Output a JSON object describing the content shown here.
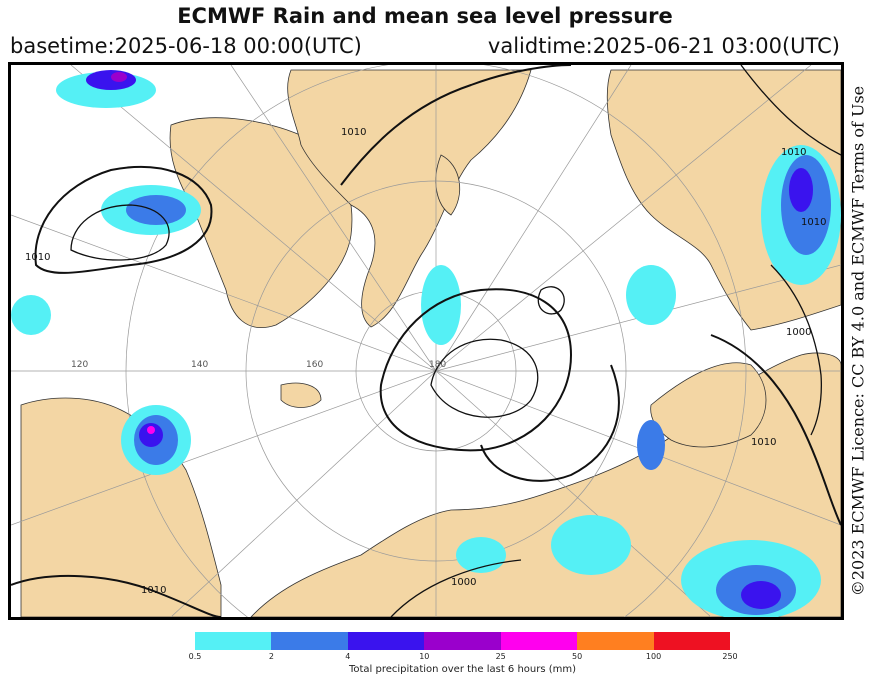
{
  "header": {
    "title": "ECMWF Rain and mean sea level pressure",
    "basetime": "basetime:2025-06-18 00:00(UTC)",
    "validtime": "validtime:2025-06-21 03:00(UTC)"
  },
  "credit": "©2023 ECMWF Licence: CC BY 4.0 and ECMWF Terms of Use",
  "map": {
    "projection": "polar-stereographic-north",
    "isobar_labels": [
      "1010",
      "1010",
      "1010",
      "1000",
      "1010",
      "1010",
      "1000",
      "1010"
    ],
    "longitude_labels": [
      "120",
      "140",
      "160",
      "180"
    ],
    "colors": {
      "land": "#f3d6a4",
      "sea": "#ffffff",
      "isobar": "#111111",
      "graticule": "#999999"
    }
  },
  "legend": {
    "caption": "Total precipitation over the last 6 hours (mm)",
    "ticks": [
      "0.5",
      "2",
      "4",
      "10",
      "25",
      "50",
      "100",
      "250"
    ],
    "colors": [
      "#55f0f5",
      "#3b7be8",
      "#3a13ee",
      "#9a00cc",
      "#ff00ee",
      "#ff7f20",
      "#ee1122"
    ]
  }
}
